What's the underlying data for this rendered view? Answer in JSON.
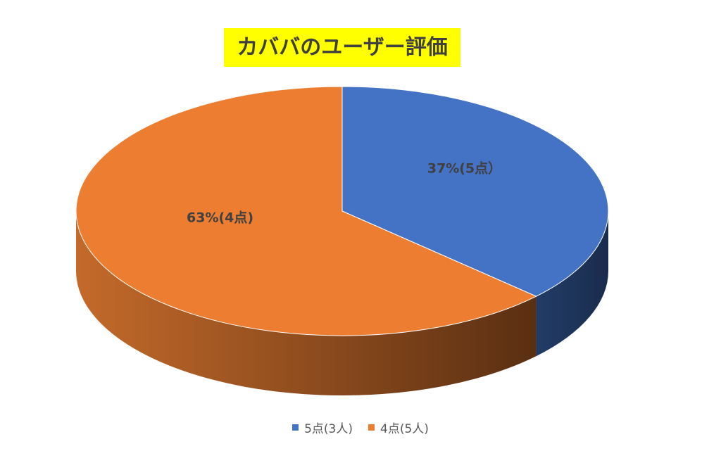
{
  "chart_data": {
    "type": "pie",
    "title": "カババのユーザー評価",
    "categories": [
      "5点(3人)",
      "4点(5人)"
    ],
    "values": [
      37,
      63
    ],
    "value_labels": [
      "37%(5点）",
      "63%(4点)"
    ],
    "colors": [
      "#4472c4",
      "#ed7d31"
    ],
    "legend": "bottom"
  }
}
